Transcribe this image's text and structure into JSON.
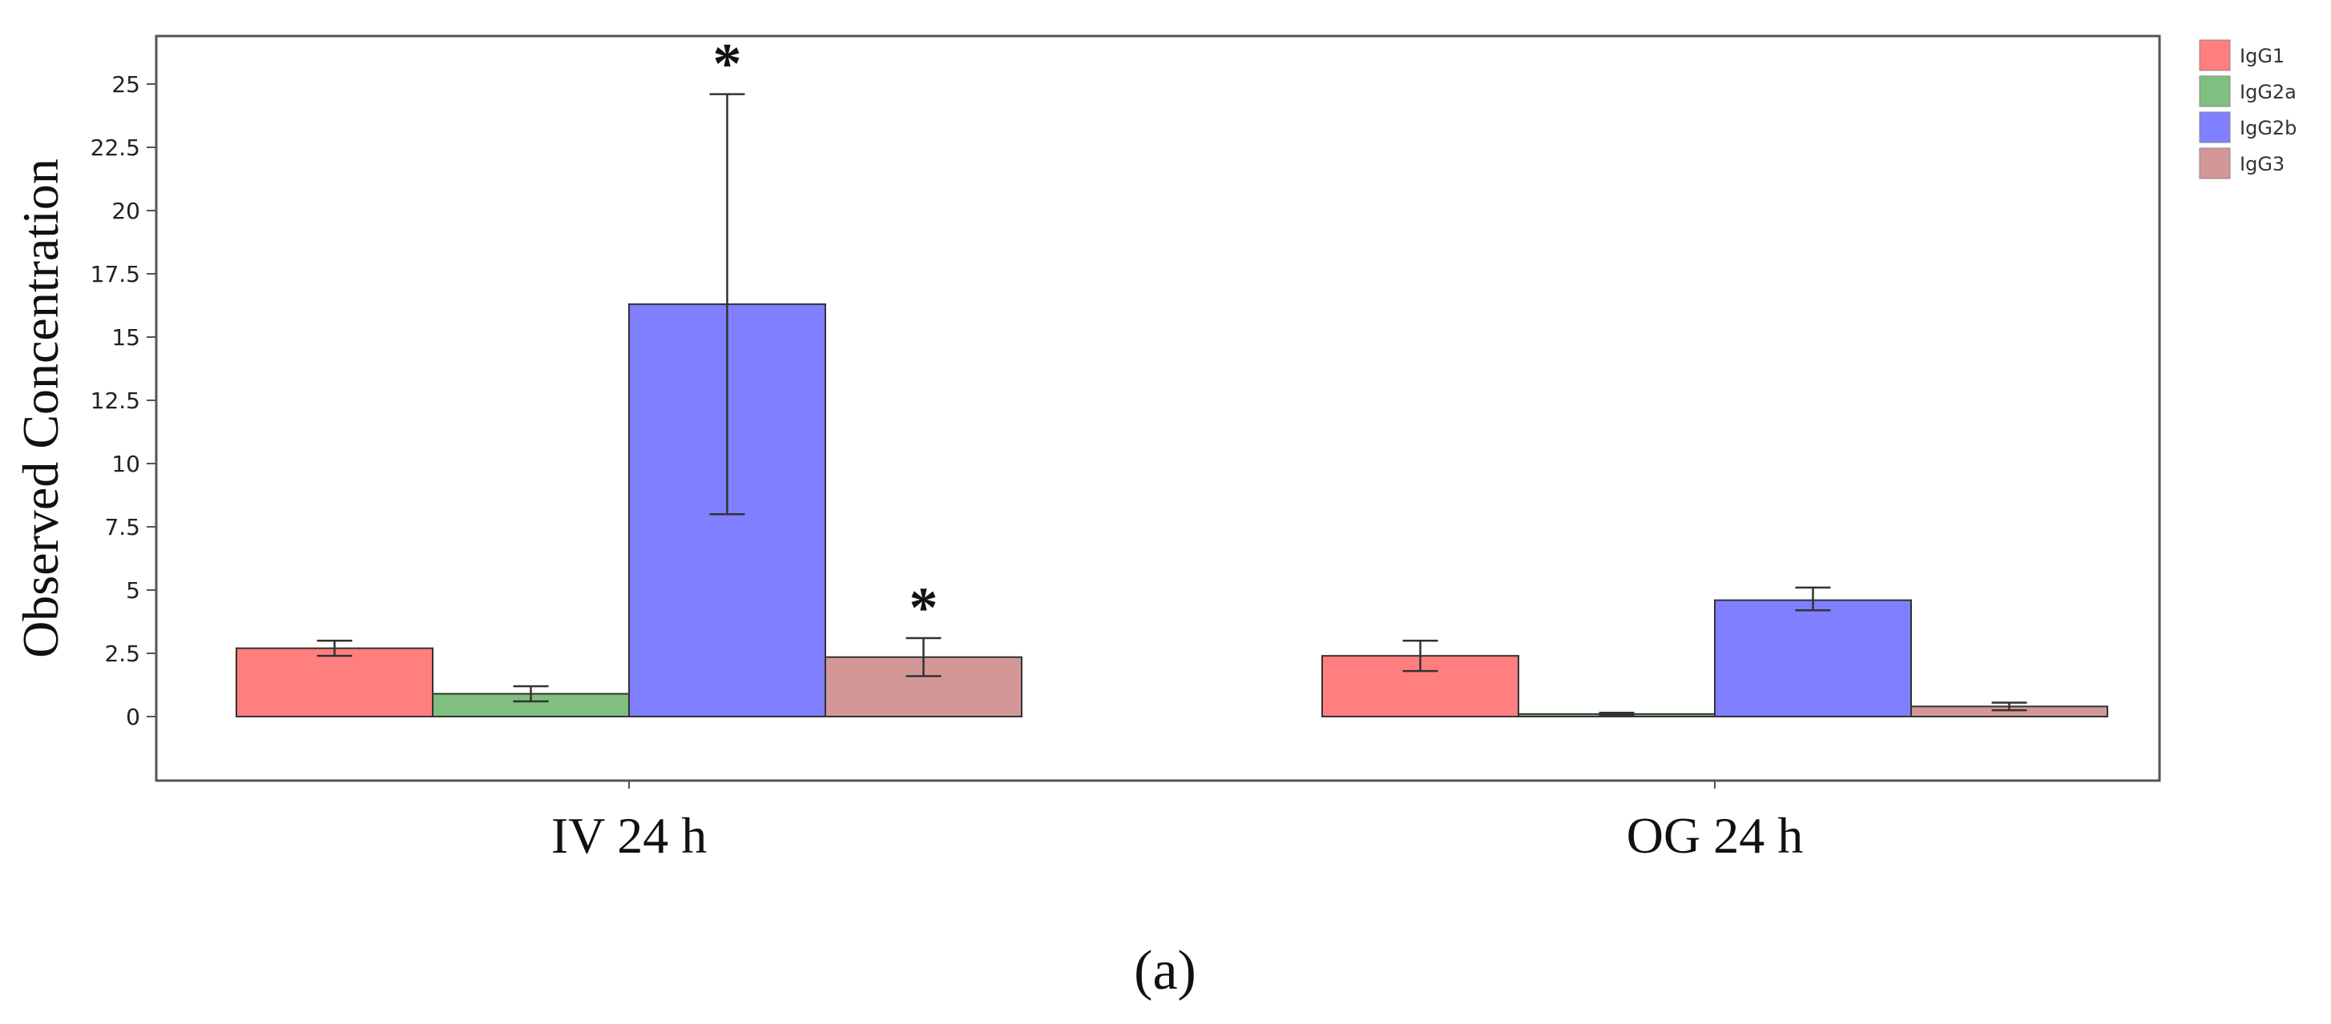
{
  "chart_data": {
    "type": "bar",
    "title": "",
    "xlabel": "",
    "ylabel": "Observed Concentration",
    "ylim": [
      -2.5,
      27
    ],
    "yticks": [
      0,
      2.5,
      5,
      7.5,
      10,
      12.5,
      15,
      17.5,
      20,
      22.5,
      25
    ],
    "ytick_labels": [
      "0",
      "2.5",
      "5",
      "7.5",
      "10",
      "12.5",
      "15",
      "17.5",
      "20",
      "22.5",
      "25"
    ],
    "categories": [
      "IV 24 h",
      "OG 24 h"
    ],
    "series": [
      {
        "name": "IgG1",
        "color": "#ff7f7f",
        "values": [
          2.7,
          2.4
        ],
        "err_low": [
          2.4,
          1.8
        ],
        "err_high": [
          3.0,
          3.0
        ]
      },
      {
        "name": "IgG2a",
        "color": "#7fbf7f",
        "values": [
          0.9,
          0.1
        ],
        "err_low": [
          0.6,
          0.05
        ],
        "err_high": [
          1.2,
          0.15
        ]
      },
      {
        "name": "IgG2b",
        "color": "#7f7fff",
        "values": [
          16.3,
          4.6
        ],
        "err_low": [
          8.0,
          4.2
        ],
        "err_high": [
          24.6,
          5.1
        ]
      },
      {
        "name": "IgG3",
        "color": "#d39797",
        "values": [
          2.35,
          0.4
        ],
        "err_low": [
          1.6,
          0.25
        ],
        "err_high": [
          3.1,
          0.55
        ]
      }
    ],
    "significance": [
      {
        "category": "IV 24 h",
        "series": "IgG2b",
        "marker": "*"
      },
      {
        "category": "IV 24 h",
        "series": "IgG3",
        "marker": "*"
      }
    ],
    "legend": {
      "position": "top-right",
      "entries": [
        "IgG1",
        "IgG2a",
        "IgG2b",
        "IgG3"
      ]
    },
    "grid": false
  },
  "panel_label": "(a)"
}
